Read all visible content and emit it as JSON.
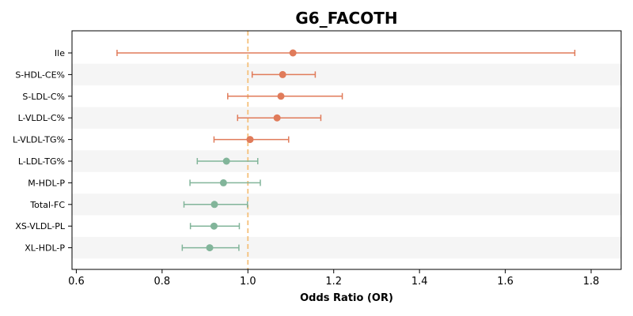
{
  "chart_data": {
    "type": "forest",
    "title": "G6_FACOTH",
    "xlabel": "Odds Ratio (OR)",
    "ylabel": "",
    "xlim": [
      0.59,
      1.87
    ],
    "xticks": [
      0.6,
      0.8,
      1.0,
      1.2,
      1.4,
      1.6,
      1.8
    ],
    "xtick_labels": [
      "0.6",
      "0.8",
      "1.0",
      "1.2",
      "1.4",
      "1.6",
      "1.8"
    ],
    "reference_line": 1.0,
    "colors": {
      "above": "#e07b5a",
      "below": "#82b59a",
      "reference": "#f5c07a",
      "band": "#f5f5f5"
    },
    "rows": [
      {
        "label": "Ile",
        "or": 1.105,
        "lower": 0.695,
        "upper": 1.762,
        "group": "above"
      },
      {
        "label": "S-HDL-CE%",
        "or": 1.081,
        "lower": 1.01,
        "upper": 1.157,
        "group": "above"
      },
      {
        "label": "S-LDL-C%",
        "or": 1.077,
        "lower": 0.953,
        "upper": 1.22,
        "group": "above"
      },
      {
        "label": "L-VLDL-C%",
        "or": 1.068,
        "lower": 0.976,
        "upper": 1.17,
        "group": "above"
      },
      {
        "label": "L-VLDL-TG%",
        "or": 1.005,
        "lower": 0.921,
        "upper": 1.095,
        "group": "above"
      },
      {
        "label": "L-LDL-TG%",
        "or": 0.95,
        "lower": 0.882,
        "upper": 1.023,
        "group": "below"
      },
      {
        "label": "M-HDL-P",
        "or": 0.943,
        "lower": 0.865,
        "upper": 1.029,
        "group": "below"
      },
      {
        "label": "Total-FC",
        "or": 0.922,
        "lower": 0.851,
        "upper": 0.999,
        "group": "below"
      },
      {
        "label": "XS-VLDL-PL",
        "or": 0.921,
        "lower": 0.866,
        "upper": 0.98,
        "group": "below"
      },
      {
        "label": "XL-HDL-P",
        "or": 0.911,
        "lower": 0.847,
        "upper": 0.979,
        "group": "below"
      }
    ]
  }
}
